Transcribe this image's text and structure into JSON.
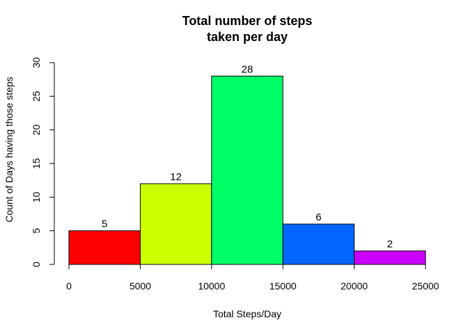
{
  "chart_data": {
    "type": "bar",
    "title_lines": [
      "Total number of steps",
      "taken per day"
    ],
    "xlabel": "Total Steps/Day",
    "ylabel": "Count of Days having those steps",
    "xlim": [
      0,
      25000
    ],
    "ylim": [
      0,
      30
    ],
    "x_ticks": [
      0,
      5000,
      10000,
      15000,
      20000,
      25000
    ],
    "y_ticks": [
      0,
      5,
      10,
      15,
      20,
      25,
      30
    ],
    "bins": [
      {
        "start": 0,
        "end": 5000,
        "count": 5,
        "label": "5",
        "color": "#ff0000"
      },
      {
        "start": 5000,
        "end": 10000,
        "count": 12,
        "label": "12",
        "color": "#ccff00"
      },
      {
        "start": 10000,
        "end": 15000,
        "count": 28,
        "label": "28",
        "color": "#00ff66"
      },
      {
        "start": 15000,
        "end": 20000,
        "count": 6,
        "label": "6",
        "color": "#0066ff"
      },
      {
        "start": 20000,
        "end": 25000,
        "count": 2,
        "label": "2",
        "color": "#cc00ff"
      }
    ],
    "grid": false,
    "legend": "none"
  }
}
